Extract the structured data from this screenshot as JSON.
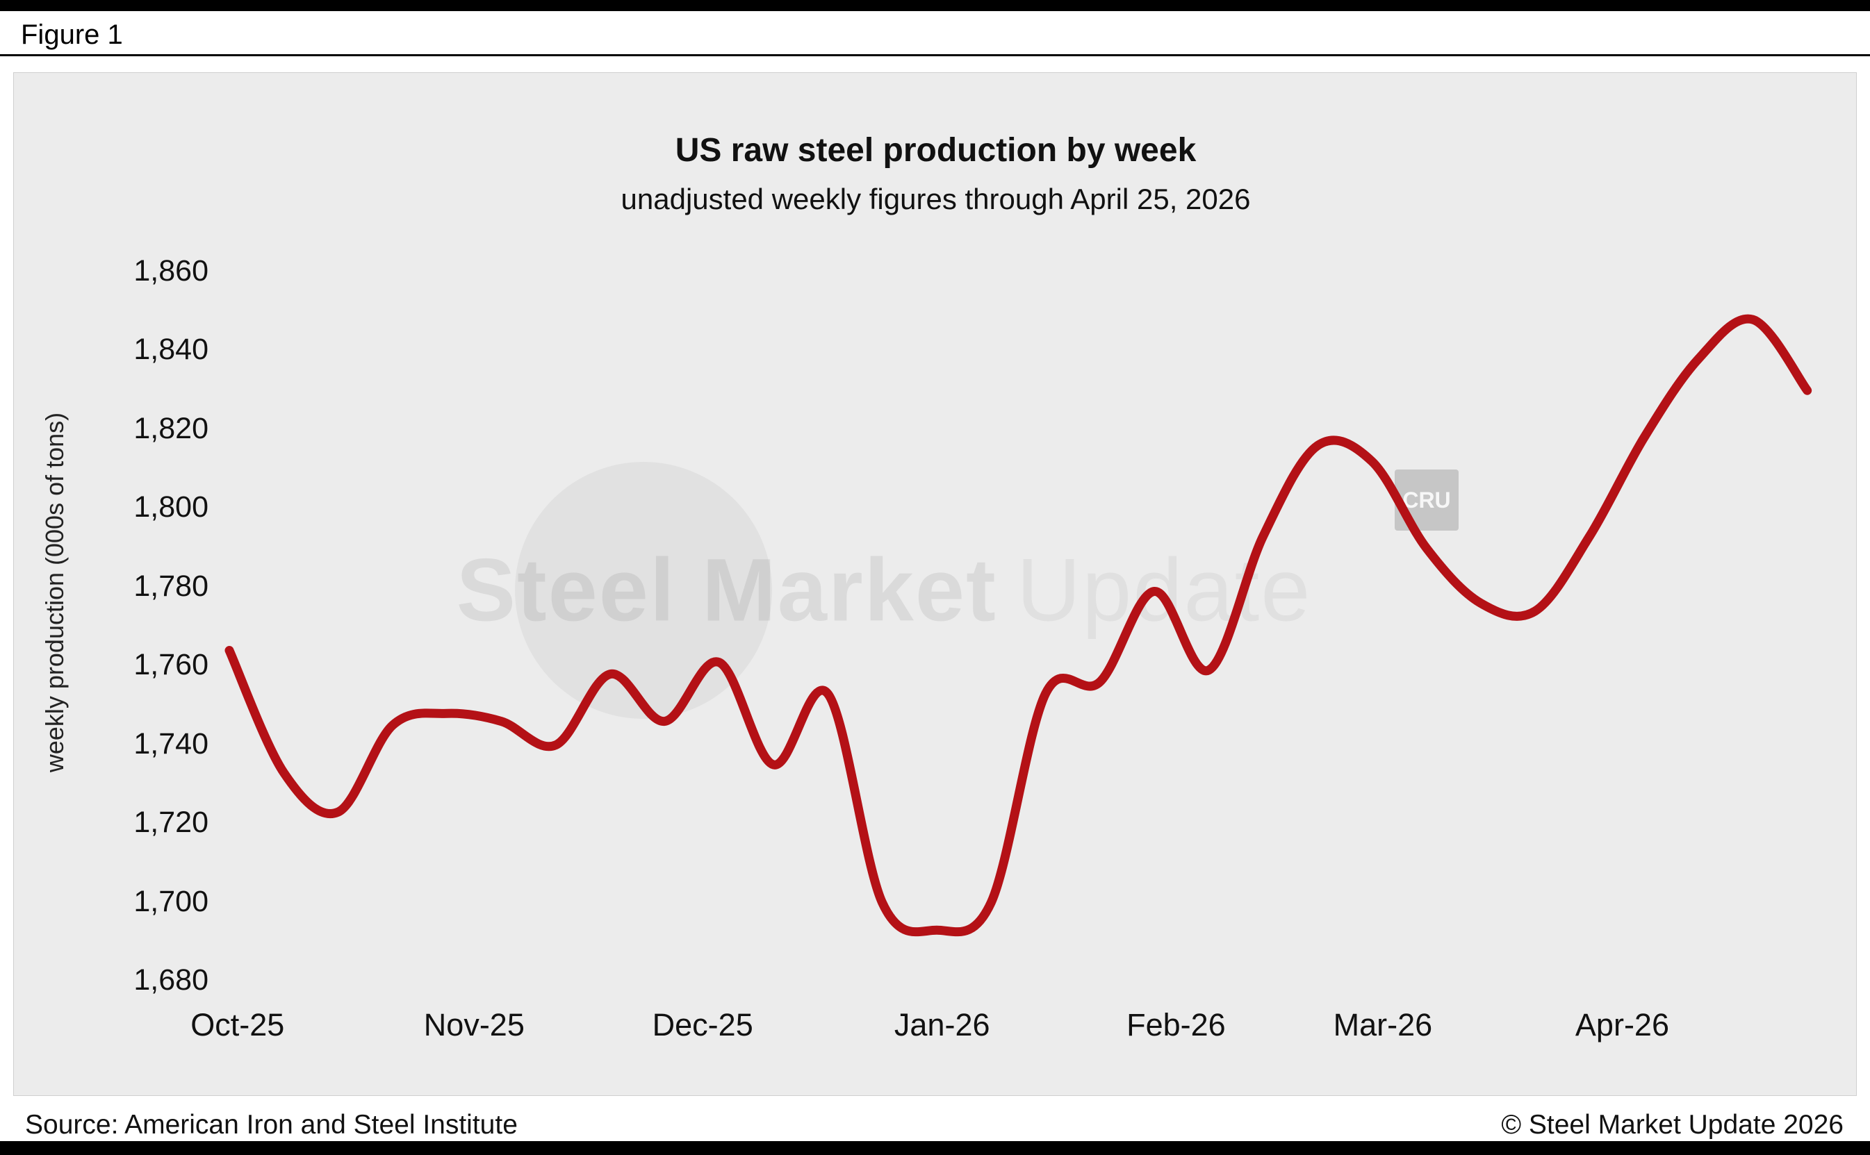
{
  "page": {
    "figure_label": "Figure 1"
  },
  "chart_data": {
    "type": "line",
    "title": "US raw steel production by week",
    "subtitle": "unadjusted weekly figures through April 25, 2026",
    "xlabel": "",
    "ylabel": "weekly production (000s of tons)",
    "ylim": [
      1680,
      1860
    ],
    "y_ticks": [
      1680,
      1700,
      1720,
      1740,
      1760,
      1780,
      1800,
      1820,
      1840,
      1860
    ],
    "x_tick_labels": [
      "Oct-25",
      "Nov-25",
      "Dec-25",
      "Jan-26",
      "Feb-26",
      "Mar-26",
      "Apr-26"
    ],
    "x_tick_week_index": [
      0.15,
      4.5,
      8.7,
      13.1,
      17.4,
      21.2,
      25.6
    ],
    "grid": false,
    "legend": "none",
    "line_color": "#b41116",
    "series": [
      {
        "name": "US weekly raw steel production (000s of tons)",
        "week_ending": [
          "2025-10-04",
          "2025-10-11",
          "2025-10-18",
          "2025-10-25",
          "2025-11-01",
          "2025-11-08",
          "2025-11-15",
          "2025-11-22",
          "2025-11-29",
          "2025-12-06",
          "2025-12-13",
          "2025-12-20",
          "2025-12-27",
          "2026-01-03",
          "2026-01-10",
          "2026-01-17",
          "2026-01-24",
          "2026-01-31",
          "2026-02-07",
          "2026-02-14",
          "2026-02-21",
          "2026-02-28",
          "2026-03-07",
          "2026-03-14",
          "2026-03-21",
          "2026-03-28",
          "2026-04-04",
          "2026-04-11",
          "2026-04-18",
          "2026-04-25"
        ],
        "values": [
          1764,
          1733,
          1723,
          1745,
          1748,
          1746,
          1740,
          1758,
          1746,
          1761,
          1735,
          1753,
          1700,
          1693,
          1700,
          1753,
          1756,
          1779,
          1759,
          1793,
          1816,
          1812,
          1790,
          1776,
          1774,
          1793,
          1818,
          1838,
          1848,
          1830
        ]
      }
    ]
  },
  "watermark": {
    "text_bold": "Steel Market",
    "text_light": "Update",
    "badge": "CRU"
  },
  "footer": {
    "source": "Source: American Iron and Steel Institute",
    "copyright": "© Steel Market Update 2026"
  }
}
